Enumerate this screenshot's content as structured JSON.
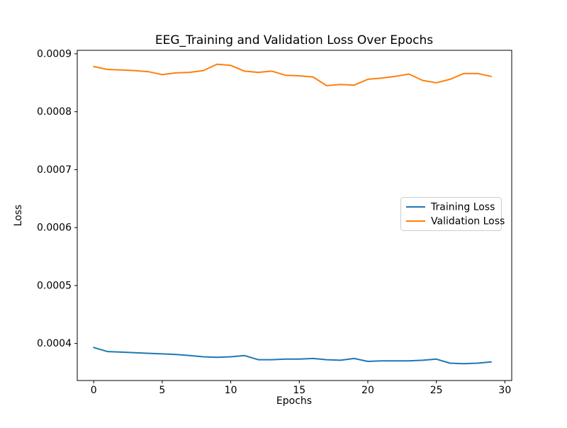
{
  "chart_data": {
    "type": "line",
    "title": "EEG_Training and Validation Loss Over Epochs",
    "xlabel": "Epochs",
    "ylabel": "Loss",
    "x": [
      0,
      1,
      2,
      3,
      4,
      5,
      6,
      7,
      8,
      9,
      10,
      11,
      12,
      13,
      14,
      15,
      16,
      17,
      18,
      19,
      20,
      21,
      22,
      23,
      24,
      25,
      26,
      27,
      28,
      29
    ],
    "series": [
      {
        "name": "Training Loss",
        "color": "#1f77b4",
        "values": [
          0.000393,
          0.000386,
          0.000385,
          0.000384,
          0.000383,
          0.000382,
          0.000381,
          0.000379,
          0.000377,
          0.000376,
          0.000377,
          0.000379,
          0.000372,
          0.000372,
          0.000373,
          0.000373,
          0.000374,
          0.000372,
          0.000371,
          0.000374,
          0.000369,
          0.00037,
          0.00037,
          0.00037,
          0.000371,
          0.000373,
          0.000366,
          0.000365,
          0.000366,
          0.000368
        ]
      },
      {
        "name": "Validation Loss",
        "color": "#ff7f0e",
        "values": [
          0.000878,
          0.000873,
          0.000872,
          0.000871,
          0.000869,
          0.000864,
          0.000867,
          0.000868,
          0.000871,
          0.000882,
          0.00088,
          0.00087,
          0.000868,
          0.00087,
          0.000863,
          0.000862,
          0.00086,
          0.000845,
          0.000847,
          0.000846,
          0.000856,
          0.000858,
          0.000861,
          0.000865,
          0.000854,
          0.00085,
          0.000856,
          0.000866,
          0.000866,
          0.000861
        ]
      }
    ],
    "xlim": [
      -1.2,
      30.5
    ],
    "ylim": [
      0.000336,
      0.000906
    ],
    "xticks": {
      "values": [
        0,
        5,
        10,
        15,
        20,
        25,
        30
      ],
      "labels": [
        "0",
        "5",
        "10",
        "15",
        "20",
        "25",
        "30"
      ]
    },
    "yticks": {
      "values": [
        0.0004,
        0.0005,
        0.0006,
        0.0007,
        0.0008,
        0.0009
      ],
      "labels": [
        "0.0004",
        "0.0005",
        "0.0006",
        "0.0007",
        "0.0008",
        "0.0009"
      ]
    },
    "legend": {
      "position": "center-right",
      "entries": [
        "Training Loss",
        "Validation Loss"
      ],
      "border_color": "#cccccc",
      "background": "#ffffff"
    },
    "grid": false,
    "plot_background": "#ffffff",
    "spine_color": "#000000"
  }
}
